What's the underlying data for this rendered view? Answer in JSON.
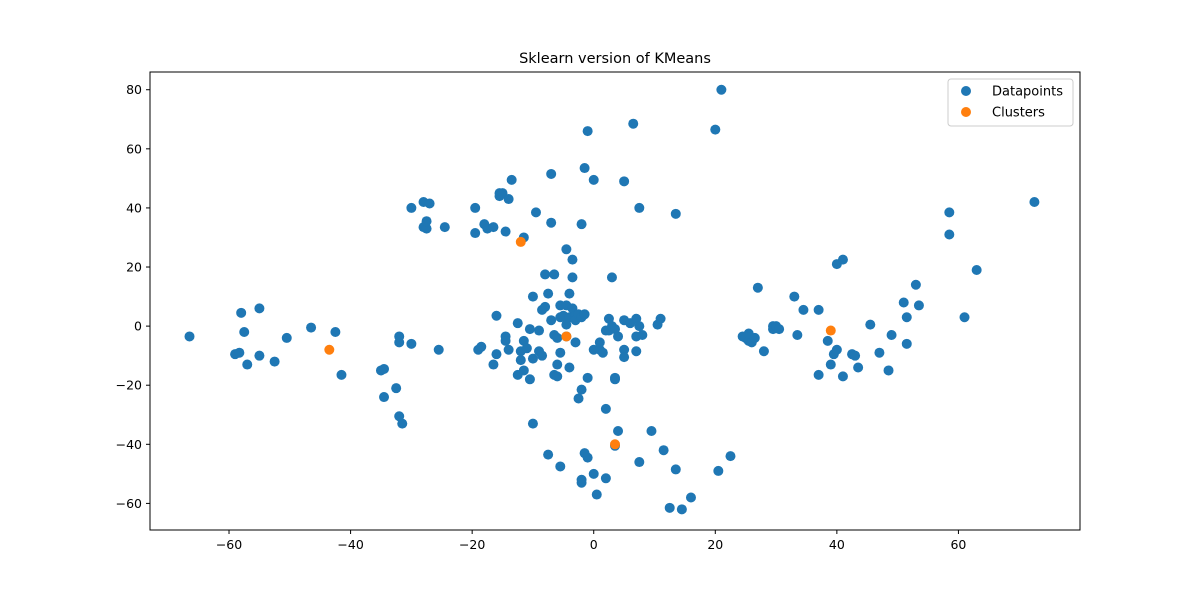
{
  "chart_data": {
    "type": "scatter",
    "title": "Sklearn version of KMeans",
    "xlabel": "",
    "ylabel": "",
    "xlim": [
      -73,
      80
    ],
    "ylim": [
      -69,
      86
    ],
    "xticks": [
      -60,
      -40,
      -20,
      0,
      20,
      40,
      60
    ],
    "yticks": [
      -60,
      -40,
      -20,
      0,
      20,
      40,
      60,
      80
    ],
    "grid": false,
    "legend": "top-right",
    "series": [
      {
        "name": "Datapoints",
        "color": "#1f77b4",
        "points": [
          [
            -66.5,
            -3.5
          ],
          [
            -59,
            -9.5
          ],
          [
            -58.3,
            -9
          ],
          [
            -58,
            4.5
          ],
          [
            -57.5,
            -2
          ],
          [
            -57,
            -13
          ],
          [
            -55,
            6
          ],
          [
            -55,
            -10
          ],
          [
            -52.5,
            -12
          ],
          [
            -50.5,
            -4
          ],
          [
            -46.5,
            -0.5
          ],
          [
            -42.5,
            -2
          ],
          [
            -41.5,
            -16.5
          ],
          [
            -35,
            -15
          ],
          [
            -34.5,
            -14.5
          ],
          [
            -34.5,
            -24
          ],
          [
            -32.5,
            -21
          ],
          [
            -32,
            -5.5
          ],
          [
            -32,
            -3.5
          ],
          [
            -32,
            -30.5
          ],
          [
            -31.5,
            -33
          ],
          [
            -30,
            -6
          ],
          [
            -30,
            40
          ],
          [
            -28,
            33.5
          ],
          [
            -28,
            42
          ],
          [
            -27.5,
            33
          ],
          [
            -27.5,
            35.5
          ],
          [
            -27,
            41.5
          ],
          [
            -25.5,
            -8
          ],
          [
            -24.5,
            33.5
          ],
          [
            -19.5,
            31.5
          ],
          [
            -19.5,
            40
          ],
          [
            -19,
            -8
          ],
          [
            -18.5,
            -7
          ],
          [
            -18,
            34.5
          ],
          [
            -17.5,
            33
          ],
          [
            -16.5,
            33.5
          ],
          [
            -16.5,
            -13
          ],
          [
            -16,
            -9.5
          ],
          [
            -16,
            3.5
          ],
          [
            -15.5,
            45
          ],
          [
            -15.5,
            44
          ],
          [
            -15,
            45
          ],
          [
            -14.5,
            -3.5
          ],
          [
            -14.5,
            -5
          ],
          [
            -14.5,
            32
          ],
          [
            -14,
            -8
          ],
          [
            -14,
            43
          ],
          [
            -13.5,
            49.5
          ],
          [
            -12.5,
            -16.5
          ],
          [
            -12.5,
            1
          ],
          [
            -12,
            -11.5
          ],
          [
            -12,
            -8.5
          ],
          [
            -11.5,
            30
          ],
          [
            -11.5,
            -15
          ],
          [
            -11.5,
            -5
          ],
          [
            -11,
            -7.5
          ],
          [
            -10.5,
            -18
          ],
          [
            -10.5,
            -1
          ],
          [
            -10,
            -11
          ],
          [
            -10,
            -33
          ],
          [
            -10,
            10
          ],
          [
            -9.5,
            38.5
          ],
          [
            -9,
            -1.5
          ],
          [
            -9,
            -8.5
          ],
          [
            -8.5,
            -10
          ],
          [
            -8.5,
            5.5
          ],
          [
            -8,
            17.5
          ],
          [
            -8,
            6.5
          ],
          [
            -7.5,
            -43.5
          ],
          [
            -7.5,
            11
          ],
          [
            -7,
            35
          ],
          [
            -7,
            51.5
          ],
          [
            -7,
            2
          ],
          [
            -6.5,
            17.5
          ],
          [
            -6.5,
            -3
          ],
          [
            -6.5,
            -16.5
          ],
          [
            -6,
            -4
          ],
          [
            -6,
            -17
          ],
          [
            -6,
            -13
          ],
          [
            -5.5,
            -47.5
          ],
          [
            -5.5,
            -9
          ],
          [
            -5.5,
            7
          ],
          [
            -5.5,
            3
          ],
          [
            -5,
            3.5
          ],
          [
            -4.5,
            26
          ],
          [
            -4.5,
            7
          ],
          [
            -4.5,
            -3.5
          ],
          [
            -4.5,
            0.5
          ],
          [
            -4,
            3
          ],
          [
            -4,
            -14
          ],
          [
            -4,
            11
          ],
          [
            -3.5,
            6
          ],
          [
            -3.5,
            16.5
          ],
          [
            -3.5,
            22.5
          ],
          [
            -3,
            3.5
          ],
          [
            -3,
            2
          ],
          [
            -3,
            -5.5
          ],
          [
            -2.5,
            -24.5
          ],
          [
            -2.5,
            4
          ],
          [
            -2,
            -21.5
          ],
          [
            -2,
            34.5
          ],
          [
            -2,
            -52
          ],
          [
            -2,
            -53
          ],
          [
            -2,
            3
          ],
          [
            -1.5,
            4
          ],
          [
            -1.5,
            53.5
          ],
          [
            -1.5,
            -43
          ],
          [
            -1,
            -44.5
          ],
          [
            -1,
            -17.5
          ],
          [
            -1,
            66
          ],
          [
            0,
            -50
          ],
          [
            0,
            49.5
          ],
          [
            0,
            -8
          ],
          [
            0.5,
            -57
          ],
          [
            1,
            -8
          ],
          [
            1,
            -5.5
          ],
          [
            1.5,
            -9
          ],
          [
            2,
            -28
          ],
          [
            2,
            -51.5
          ],
          [
            2,
            -1.5
          ],
          [
            2.5,
            -1.5
          ],
          [
            2.5,
            2.5
          ],
          [
            3,
            0
          ],
          [
            3,
            16.5
          ],
          [
            3.5,
            -18
          ],
          [
            3.5,
            -40.5
          ],
          [
            3.5,
            -17.5
          ],
          [
            3.5,
            -1
          ],
          [
            4,
            -35.5
          ],
          [
            4,
            -3.5
          ],
          [
            5,
            49
          ],
          [
            5,
            -8
          ],
          [
            5,
            -10.5
          ],
          [
            5,
            2
          ],
          [
            6,
            1
          ],
          [
            6.5,
            68.5
          ],
          [
            7,
            -8.5
          ],
          [
            7,
            -3.5
          ],
          [
            7,
            2.5
          ],
          [
            7.5,
            0
          ],
          [
            7.5,
            40
          ],
          [
            7.5,
            -46
          ],
          [
            8,
            -3
          ],
          [
            9.5,
            -35.5
          ],
          [
            10.5,
            0.5
          ],
          [
            11,
            2.5
          ],
          [
            11.5,
            -42
          ],
          [
            12.5,
            -61.5
          ],
          [
            13.5,
            38
          ],
          [
            13.5,
            -48.5
          ],
          [
            14.5,
            -62
          ],
          [
            16,
            -58
          ],
          [
            20,
            66.5
          ],
          [
            20.5,
            -49
          ],
          [
            21,
            80
          ],
          [
            22.5,
            -44
          ],
          [
            24.5,
            -3.5
          ],
          [
            25,
            -4
          ],
          [
            25.5,
            -5
          ],
          [
            25.5,
            -2.5
          ],
          [
            26,
            -5.5
          ],
          [
            26.5,
            -4
          ],
          [
            27,
            13
          ],
          [
            28,
            -8.5
          ],
          [
            29.5,
            -1
          ],
          [
            29.5,
            0
          ],
          [
            30,
            0
          ],
          [
            30.5,
            -1
          ],
          [
            33,
            10
          ],
          [
            33.5,
            -3
          ],
          [
            34.5,
            5.5
          ],
          [
            37,
            5.5
          ],
          [
            37,
            -16.5
          ],
          [
            38.5,
            -5
          ],
          [
            39,
            -13
          ],
          [
            39.5,
            -9.5
          ],
          [
            40,
            21
          ],
          [
            40,
            -8
          ],
          [
            41,
            22.5
          ],
          [
            41,
            -17
          ],
          [
            42.5,
            -9.5
          ],
          [
            43,
            -10
          ],
          [
            43.5,
            -14
          ],
          [
            45.5,
            0.5
          ],
          [
            47,
            -9
          ],
          [
            48.5,
            -15
          ],
          [
            49,
            -3
          ],
          [
            51,
            8
          ],
          [
            51.5,
            3
          ],
          [
            51.5,
            -6
          ],
          [
            53,
            14
          ],
          [
            53.5,
            7
          ],
          [
            58.5,
            38.5
          ],
          [
            58.5,
            31
          ],
          [
            61,
            3
          ],
          [
            63,
            19
          ],
          [
            72.5,
            42
          ]
        ]
      },
      {
        "name": "Clusters",
        "color": "#ff7f0e",
        "points": [
          [
            -43.5,
            -8
          ],
          [
            -12,
            28.5
          ],
          [
            -4.5,
            -3.5
          ],
          [
            3.5,
            -40
          ],
          [
            39,
            -1.5
          ]
        ]
      }
    ]
  }
}
